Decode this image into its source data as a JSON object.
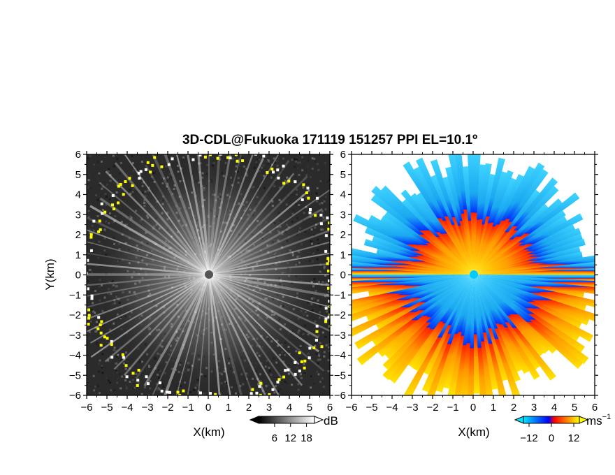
{
  "title": "3D-CDL@Fukuoka 171119 151257 PPI EL=10.1º",
  "chart_data": [
    {
      "type": "heatmap",
      "panel": "left",
      "quantity_unit": "dB",
      "xlabel": "X(km)",
      "ylabel": "Y(km)",
      "xlim": [
        -6,
        6
      ],
      "ylim": [
        -6,
        6
      ],
      "xticks": [
        "−6",
        "−5",
        "−4",
        "−3",
        "−2",
        "−1",
        "0",
        "1",
        "2",
        "3",
        "4",
        "5",
        "6"
      ],
      "yticks": [
        "6",
        "5",
        "4",
        "3",
        "2",
        "1",
        "0",
        "−1",
        "−2",
        "−3",
        "−4",
        "−5",
        "−6"
      ],
      "colorbar": {
        "ticks": [
          "6",
          "12",
          "18"
        ],
        "range": [
          0,
          21
        ],
        "unit": "dB",
        "colors": [
          "#000000",
          "#ffffff"
        ]
      },
      "range_edge_color": "#ffff00"
    },
    {
      "type": "heatmap",
      "panel": "right",
      "quantity_unit": "ms⁻¹",
      "xlabel": "X(km)",
      "xlim": [
        -6,
        6
      ],
      "ylim": [
        -6,
        6
      ],
      "xticks": [
        "−6",
        "−5",
        "−4",
        "−3",
        "−2",
        "−1",
        "0",
        "1",
        "2",
        "3",
        "4",
        "5",
        "6"
      ],
      "yticks": [
        "6",
        "5",
        "4",
        "3",
        "2",
        "1",
        "0",
        "−1",
        "−2",
        "−3",
        "−4",
        "−5",
        "−6"
      ],
      "colorbar": {
        "ticks": [
          "−12",
          "0",
          "12"
        ],
        "range": [
          -15,
          15
        ],
        "unit_base": "ms",
        "unit_exp": "−1",
        "colors": [
          "#00e5ff",
          "#0000ff",
          "#ff0000",
          "#ffff00"
        ]
      },
      "pattern": "negative (toward radar, blue) north of y=0, positive (away, red-yellow) south of y=0"
    }
  ]
}
